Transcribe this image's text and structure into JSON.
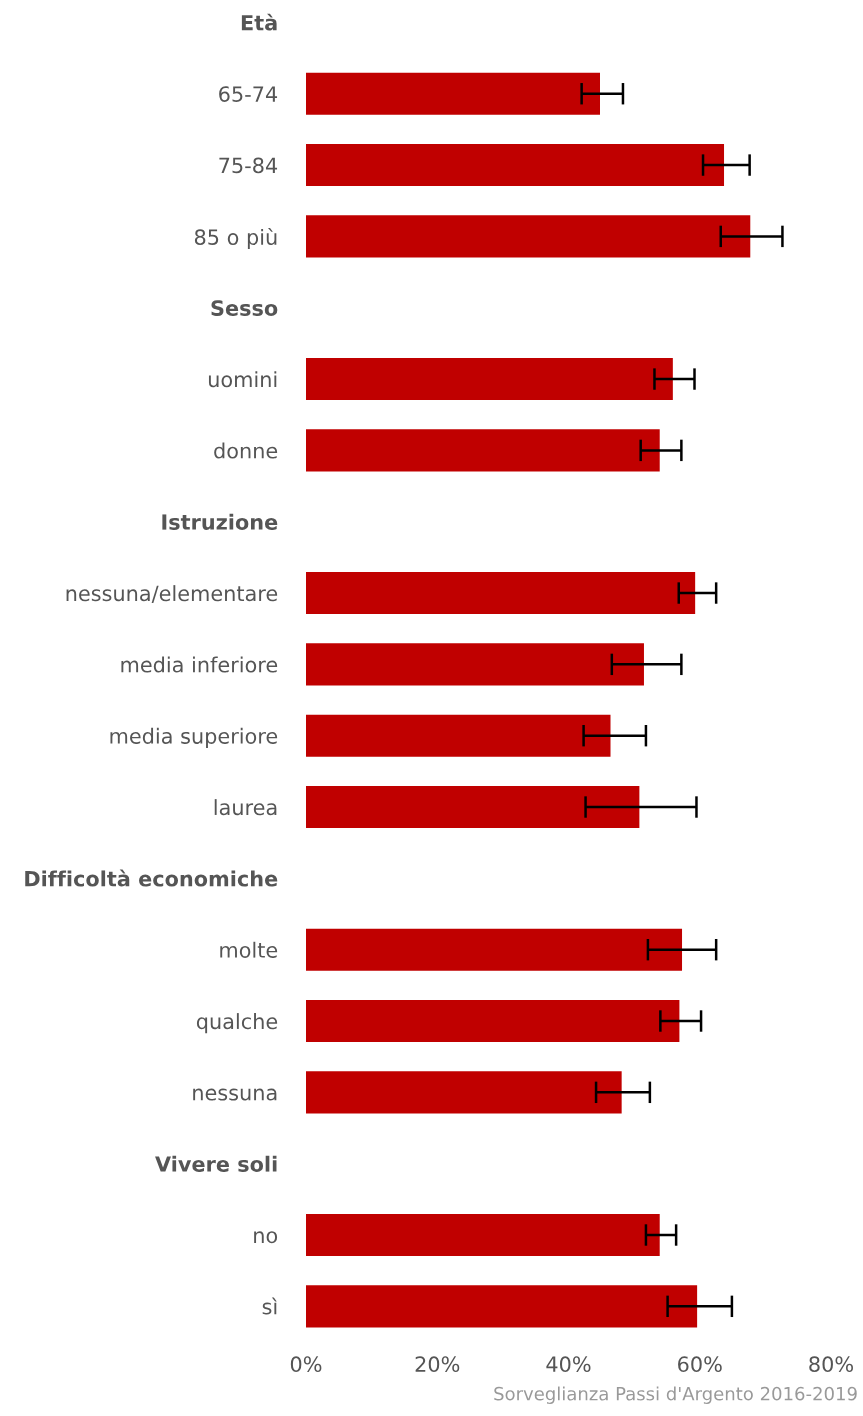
{
  "chart_data": {
    "type": "bar",
    "orientation": "horizontal",
    "categories": [
      "Età",
      "65-74",
      "75-84",
      "85 o più",
      "Sesso",
      "uomini",
      "donne",
      "Istruzione",
      "nessuna/elementare",
      "media inferiore",
      "media superiore",
      "laurea",
      "Difficoltà economiche",
      "molte",
      "qualche",
      "nessuna",
      "Vivere soli",
      "no",
      "sì"
    ],
    "values": [
      null,
      44.8,
      63.7,
      67.7,
      null,
      55.9,
      53.9,
      null,
      59.3,
      51.5,
      46.4,
      50.8,
      null,
      57.3,
      56.9,
      48.1,
      null,
      53.9,
      59.6
    ],
    "errors": [
      null,
      [
        42.0,
        48.3
      ],
      [
        60.5,
        67.6
      ],
      [
        63.2,
        72.6
      ],
      null,
      [
        53.1,
        59.2
      ],
      [
        51.0,
        57.2
      ],
      null,
      [
        56.8,
        62.5
      ],
      [
        46.6,
        57.2
      ],
      [
        42.3,
        51.8
      ],
      [
        42.6,
        59.5
      ],
      null,
      [
        52.1,
        62.5
      ],
      [
        54.0,
        60.2
      ],
      [
        44.2,
        52.4
      ],
      null,
      [
        51.8,
        56.4
      ],
      [
        55.1,
        64.9
      ]
    ],
    "color": "#c00000",
    "xlim": [
      0,
      80
    ],
    "xticks": [
      {
        "value": 0,
        "label": "0%"
      },
      {
        "value": 20,
        "label": "20%"
      },
      {
        "value": 40,
        "label": "40%"
      },
      {
        "value": 60,
        "label": "60%"
      },
      {
        "value": 80,
        "label": "80%"
      }
    ],
    "grid": false,
    "annotations": [
      "Sorveglianza Passi d'Argento 2016-2019"
    ]
  }
}
